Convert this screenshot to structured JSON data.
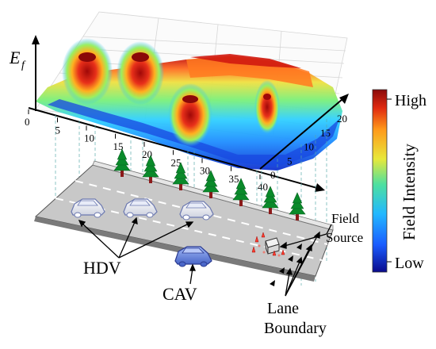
{
  "axes": {
    "z_label": "E",
    "z_label_sub": "f",
    "x_ticks": [
      "0",
      "5",
      "10",
      "15",
      "20",
      "25",
      "30",
      "35",
      "40"
    ],
    "y_ticks": [
      "0",
      "5",
      "10",
      "15",
      "20"
    ]
  },
  "colorbar": {
    "high_label": "High",
    "low_label": "Low",
    "title": "Field Intensity",
    "colors": [
      "#0a0a8c",
      "#1a5cff",
      "#22b8ff",
      "#4de0a0",
      "#e8e83a",
      "#ff9a1a",
      "#e02a10",
      "#8a0a0a"
    ]
  },
  "labels": {
    "field_source_line1": "Field",
    "field_source_line2": "Source",
    "hdv": "HDV",
    "cav": "CAV",
    "lane_boundary_line1": "Lane",
    "lane_boundary_line2": "Boundary"
  },
  "colors": {
    "road": "#c8c8c8",
    "lane_dash": "#ffffff",
    "tree_green": "#0a8a2a",
    "trunk": "#8b1a1a",
    "cav_fill": "#6f8fe0",
    "hdv_fill": "#f4f4f8",
    "cone": "#ff3a2a"
  }
}
